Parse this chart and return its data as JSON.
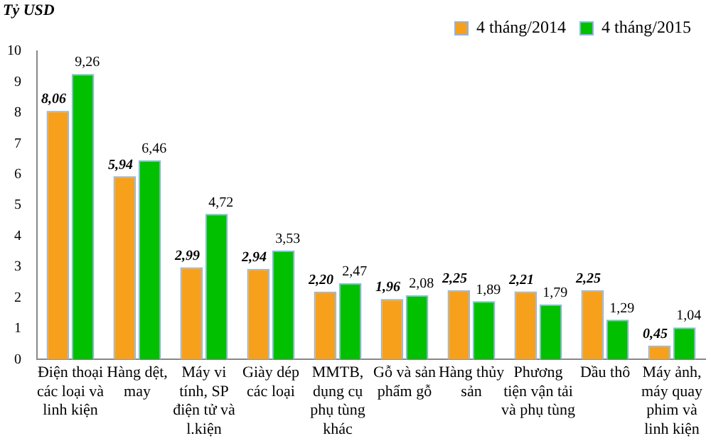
{
  "chart_data": {
    "type": "bar",
    "ylabel": "Tỷ USD",
    "categories": [
      "Điện thoại các loại và linh kiện",
      "Hàng dệt, may",
      "Máy vi tính, SP điện tử và l.kiện",
      "Giày dép các loại",
      "MMTB, dụng cụ phụ tùng khác",
      "Gỗ và sản phẩm gỗ",
      "Hàng thủy sản",
      "Phương tiện vận tải và phụ tùng",
      "Dầu thô",
      "Máy ảnh, máy quay phim và linh kiện"
    ],
    "series": [
      {
        "name": "4 tháng/2014",
        "color": "#f7a01c",
        "values": [
          8.06,
          5.94,
          2.99,
          2.94,
          2.2,
          1.96,
          2.25,
          2.21,
          2.25,
          0.45
        ],
        "value_labels": [
          "8,06",
          "5,94",
          "2,99",
          "2,94",
          "2,20",
          "1,96",
          "2,25",
          "2,21",
          "2,25",
          "0,45"
        ]
      },
      {
        "name": "4 tháng/2015",
        "color": "#00c000",
        "values": [
          9.26,
          6.46,
          4.72,
          3.53,
          2.47,
          2.08,
          1.89,
          1.79,
          1.29,
          1.04
        ],
        "value_labels": [
          "9,26",
          "6,46",
          "4,72",
          "3,53",
          "2,47",
          "2,08",
          "1,89",
          "1,79",
          "1,29",
          "1,04"
        ]
      }
    ],
    "ylim": [
      0,
      10
    ],
    "yticks": [
      0,
      1,
      2,
      3,
      4,
      5,
      6,
      7,
      8,
      9,
      10
    ],
    "grid": false,
    "legend": "top right"
  }
}
